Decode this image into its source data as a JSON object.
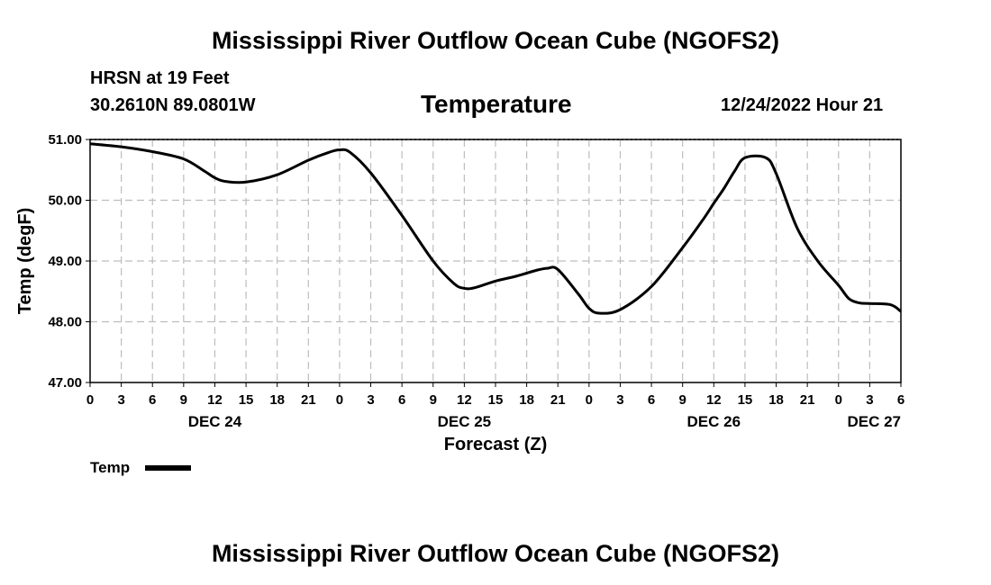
{
  "header": {
    "title_top": "Mississippi River Outflow Ocean Cube (NGOFS2)",
    "station": "HRSN at 19 Feet",
    "coords": "30.2610N  89.0801W",
    "variable": "Temperature",
    "datetime": "12/24/2022 Hour 21",
    "title_bottom": "Mississippi River Outflow Ocean Cube (NGOFS2)"
  },
  "legend": {
    "label": "Temp"
  },
  "chart_data": {
    "type": "line",
    "title": "Temperature",
    "xlabel": "Forecast (Z)",
    "ylabel": "Temp (degF)",
    "ylim": [
      47.0,
      51.0
    ],
    "xlim": [
      0,
      78
    ],
    "y_ticks": [
      "47.00",
      "48.00",
      "49.00",
      "50.00",
      "51.00"
    ],
    "x_tick_labels": [
      "0",
      "3",
      "6",
      "9",
      "12",
      "15",
      "18",
      "21",
      "0",
      "3",
      "6",
      "9",
      "12",
      "15",
      "18",
      "21",
      "0",
      "3",
      "6",
      "9",
      "12",
      "15",
      "18",
      "21",
      "0",
      "3",
      "6"
    ],
    "day_labels": [
      {
        "label": "DEC 24",
        "hour": 12
      },
      {
        "label": "DEC 25",
        "hour": 36
      },
      {
        "label": "DEC 26",
        "hour": 60
      },
      {
        "label": "DEC 27",
        "hour": 78
      }
    ],
    "grid": true,
    "series": [
      {
        "name": "Temp",
        "color": "#000000",
        "x": [
          0,
          3,
          6,
          9,
          11,
          12,
          13,
          15,
          18,
          21,
          23,
          24,
          25,
          27,
          30,
          33,
          35,
          36,
          37,
          39,
          41,
          43,
          44,
          45,
          47,
          48,
          49,
          51,
          54,
          57,
          59,
          60,
          61,
          62,
          63,
          65,
          66,
          68,
          70,
          72,
          73,
          74,
          75,
          77,
          78
        ],
        "y": [
          50.93,
          50.88,
          50.8,
          50.68,
          50.48,
          50.37,
          50.31,
          50.3,
          50.42,
          50.66,
          50.79,
          50.83,
          50.79,
          50.45,
          49.75,
          49.0,
          48.63,
          48.55,
          48.56,
          48.67,
          48.75,
          48.85,
          48.88,
          48.86,
          48.45,
          48.22,
          48.14,
          48.2,
          48.58,
          49.22,
          49.69,
          49.95,
          50.2,
          50.48,
          50.7,
          50.7,
          50.44,
          49.55,
          49.0,
          48.6,
          48.38,
          48.31,
          48.3,
          48.28,
          48.17
        ]
      }
    ]
  }
}
